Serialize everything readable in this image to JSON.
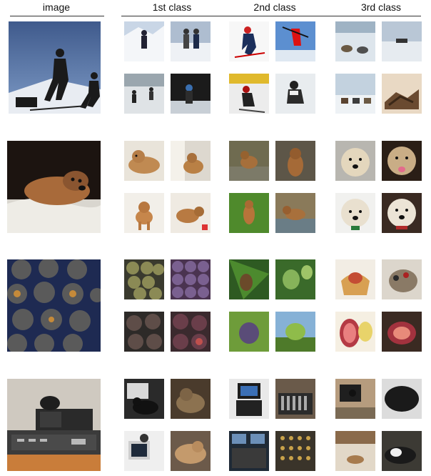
{
  "headers": {
    "image": "image",
    "class1": "1st class",
    "class2": "2nd class",
    "class3": "3rd class"
  },
  "rows": [
    {
      "subject": "skiing"
    },
    {
      "subject": "dog"
    },
    {
      "subject": "figs"
    },
    {
      "subject": "cat on electronics"
    }
  ]
}
